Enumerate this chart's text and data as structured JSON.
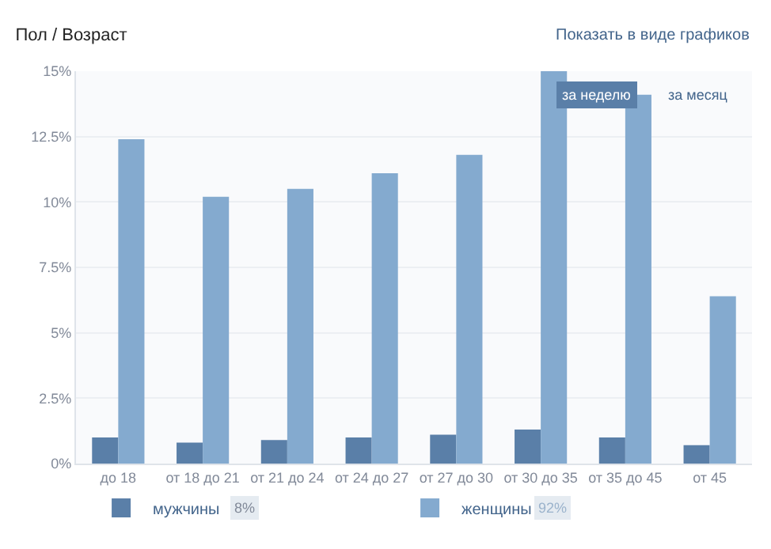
{
  "chart_data": {
    "type": "bar",
    "title": "Пол / Возраст",
    "categories": [
      "до 18",
      "от 18 до 21",
      "от 21 до 24",
      "от 24 до 27",
      "от 27 до 30",
      "от 30 до 35",
      "от 35 до 45",
      "от 45"
    ],
    "series": [
      {
        "name": "мужчины",
        "color": "#5a7fa8",
        "values": [
          1.0,
          0.8,
          0.9,
          1.0,
          1.1,
          1.3,
          1.0,
          0.7
        ]
      },
      {
        "name": "женщины",
        "color": "#84aacf",
        "values": [
          12.4,
          10.2,
          10.5,
          11.1,
          11.8,
          15.0,
          14.1,
          6.4
        ]
      }
    ],
    "ylim": [
      0,
      15
    ],
    "yticks": [
      {
        "value": 0,
        "label": "0%"
      },
      {
        "value": 2.5,
        "label": "2.5%"
      },
      {
        "value": 5,
        "label": "5%"
      },
      {
        "value": 7.5,
        "label": "7.5%"
      },
      {
        "value": 10,
        "label": "10%"
      },
      {
        "value": 12.5,
        "label": "12.5%"
      },
      {
        "value": 15,
        "label": "15%"
      }
    ],
    "grid": "y",
    "legend": "bottom",
    "annotations": [
      "Показать в виде графиков",
      "за неделю",
      "за месяц",
      "8%",
      "92%"
    ]
  }
}
